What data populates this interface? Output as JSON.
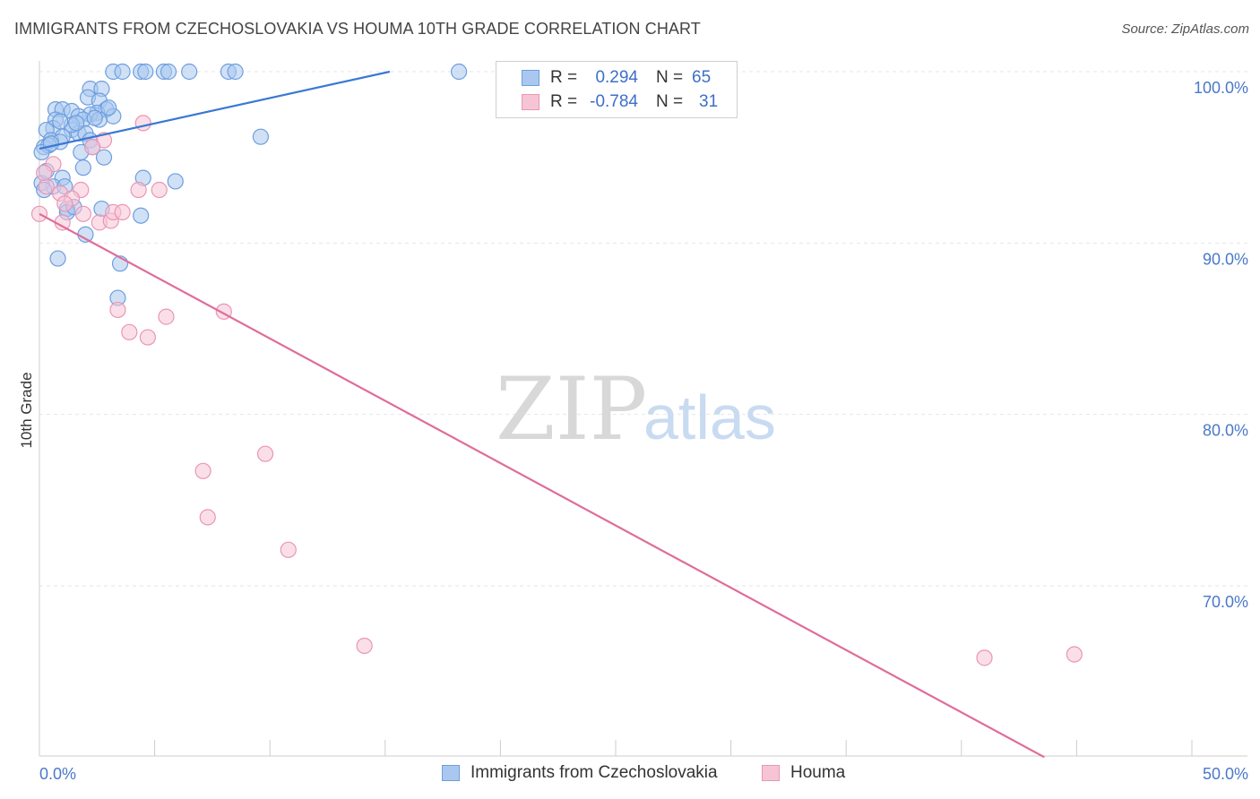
{
  "header": {
    "title": "IMMIGRANTS FROM CZECHOSLOVAKIA VS HOUMA 10TH GRADE CORRELATION CHART",
    "source": "Source: ZipAtlas.com"
  },
  "legend": {
    "series1": {
      "r_label": "R =",
      "r_value": "0.294",
      "n_label": "N =",
      "n_value": "65"
    },
    "series2": {
      "r_label": "R =",
      "r_value": "-0.784",
      "n_label": "N =",
      "n_value": "31"
    }
  },
  "bottom_legend": {
    "series1": "Immigrants from Czechoslovakia",
    "series2": "Houma"
  },
  "watermark": {
    "zip": "ZIP",
    "atlas": "atlas"
  },
  "colors": {
    "blue_fill": "#aac8ef",
    "blue_stroke": "#6d9ee0",
    "blue_line": "#3a78d4",
    "pink_fill": "#f7c4d6",
    "pink_stroke": "#e996b4",
    "pink_line": "#e06c9a",
    "grid": "#e6e6e6",
    "axis_text": "#4a78c8"
  },
  "chart_data": {
    "type": "scatter",
    "title": "IMMIGRANTS FROM CZECHOSLOVAKIA VS HOUMA 10TH GRADE CORRELATION CHART",
    "xlabel": "",
    "ylabel": "10th Grade",
    "xlim": [
      0,
      50
    ],
    "ylim": [
      60,
      100
    ],
    "x_tick_labels": [
      {
        "value": 0,
        "label": "0.0%"
      },
      {
        "value": 50,
        "label": "50.0%"
      }
    ],
    "y_tick_labels": [
      {
        "value": 100,
        "label": "100.0%"
      },
      {
        "value": 90,
        "label": "90.0%"
      },
      {
        "value": 80,
        "label": "80.0%"
      },
      {
        "value": 70,
        "label": "70.0%"
      }
    ],
    "grid": true,
    "series": [
      {
        "name": "Immigrants from Czechoslovakia",
        "color": "blue",
        "trendline": {
          "x": [
            0,
            15.2
          ],
          "y": [
            95.5,
            100
          ]
        },
        "points": [
          [
            3.2,
            100
          ],
          [
            3.6,
            100
          ],
          [
            4.4,
            100
          ],
          [
            4.6,
            100
          ],
          [
            5.4,
            100
          ],
          [
            5.6,
            100
          ],
          [
            6.5,
            100
          ],
          [
            8.2,
            100
          ],
          [
            8.5,
            100
          ],
          [
            18.2,
            100
          ],
          [
            2.2,
            99.0
          ],
          [
            2.7,
            99.0
          ],
          [
            2.1,
            98.5
          ],
          [
            2.6,
            98.3
          ],
          [
            0.7,
            97.8
          ],
          [
            1.0,
            97.8
          ],
          [
            1.4,
            97.7
          ],
          [
            2.9,
            97.8
          ],
          [
            2.5,
            97.6
          ],
          [
            2.2,
            97.5
          ],
          [
            0.7,
            97.2
          ],
          [
            1.7,
            97.4
          ],
          [
            3.2,
            97.4
          ],
          [
            1.9,
            97.2
          ],
          [
            2.6,
            97.2
          ],
          [
            0.6,
            96.7
          ],
          [
            0.3,
            96.6
          ],
          [
            1.4,
            96.6
          ],
          [
            1.7,
            96.4
          ],
          [
            1.0,
            96.2
          ],
          [
            2.0,
            96.4
          ],
          [
            2.2,
            96.0
          ],
          [
            0.5,
            96.0
          ],
          [
            0.9,
            95.9
          ],
          [
            2.3,
            95.6
          ],
          [
            0.2,
            95.6
          ],
          [
            0.4,
            95.7
          ],
          [
            0.1,
            95.3
          ],
          [
            1.8,
            95.3
          ],
          [
            2.8,
            95.0
          ],
          [
            9.6,
            96.2
          ],
          [
            1.9,
            94.4
          ],
          [
            1.0,
            93.8
          ],
          [
            4.5,
            93.8
          ],
          [
            5.9,
            93.6
          ],
          [
            0.6,
            93.3
          ],
          [
            1.1,
            93.3
          ],
          [
            0.1,
            93.5
          ],
          [
            2.7,
            92.0
          ],
          [
            1.2,
            92.0
          ],
          [
            1.2,
            91.8
          ],
          [
            4.4,
            91.6
          ],
          [
            2.0,
            90.5
          ],
          [
            0.8,
            89.1
          ],
          [
            3.5,
            88.8
          ],
          [
            3.4,
            86.8
          ],
          [
            0.2,
            93.1
          ],
          [
            0.5,
            95.8
          ],
          [
            1.4,
            96.9
          ],
          [
            2.4,
            97.3
          ],
          [
            1.6,
            97.0
          ],
          [
            3.0,
            97.9
          ],
          [
            0.3,
            94.2
          ],
          [
            1.5,
            92.1
          ],
          [
            0.9,
            97.1
          ]
        ]
      },
      {
        "name": "Houma",
        "color": "pink",
        "trendline": {
          "x": [
            0,
            43.6
          ],
          "y": [
            91.7,
            60
          ]
        },
        "points": [
          [
            4.5,
            97.0
          ],
          [
            2.8,
            96.0
          ],
          [
            2.3,
            95.6
          ],
          [
            0.6,
            94.6
          ],
          [
            0.3,
            93.3
          ],
          [
            0.9,
            92.9
          ],
          [
            1.8,
            93.1
          ],
          [
            4.3,
            93.1
          ],
          [
            5.2,
            93.1
          ],
          [
            1.4,
            92.6
          ],
          [
            1.1,
            92.3
          ],
          [
            0.0,
            91.7
          ],
          [
            1.0,
            91.2
          ],
          [
            1.9,
            91.7
          ],
          [
            2.6,
            91.2
          ],
          [
            3.1,
            91.3
          ],
          [
            3.2,
            91.8
          ],
          [
            3.6,
            91.8
          ],
          [
            3.4,
            86.1
          ],
          [
            5.5,
            85.7
          ],
          [
            8.0,
            86.0
          ],
          [
            3.9,
            84.8
          ],
          [
            4.7,
            84.5
          ],
          [
            7.1,
            76.7
          ],
          [
            9.8,
            77.7
          ],
          [
            7.3,
            74.0
          ],
          [
            10.8,
            72.1
          ],
          [
            14.1,
            66.5
          ],
          [
            41.0,
            65.8
          ],
          [
            44.9,
            66.0
          ],
          [
            0.2,
            94.1
          ]
        ]
      }
    ]
  }
}
